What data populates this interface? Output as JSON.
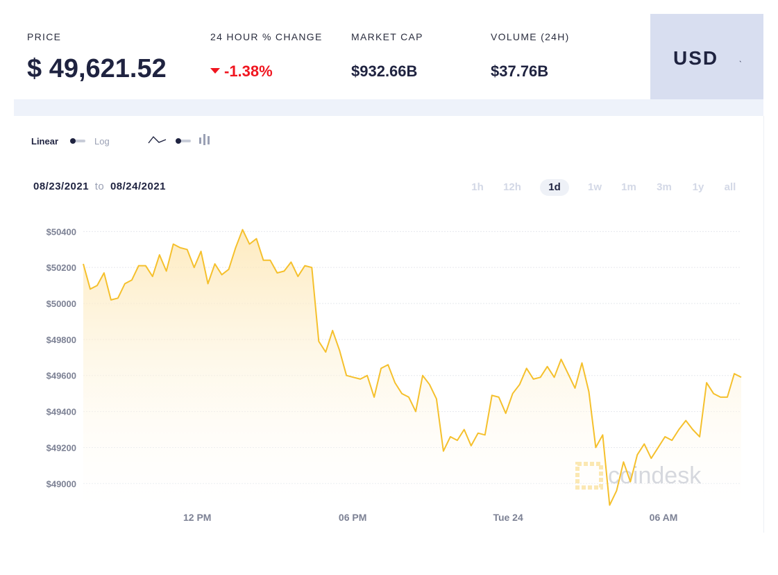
{
  "stats": {
    "price_label": "PRICE",
    "price_value": "$ 49,621.52",
    "change_label": "24 HOUR % CHANGE",
    "change_value": "-1.38%",
    "change_color": "#f0151f",
    "cap_label": "MARKET CAP",
    "cap_value": "$932.66B",
    "volume_label": "VOLUME (24H)",
    "volume_value": "$37.76B"
  },
  "currency": {
    "label": "USD",
    "icon": "chevron-down-icon"
  },
  "scale_toggle": {
    "linear_label": "Linear",
    "log_label": "Log"
  },
  "chart_style_toggle": {
    "line_icon": "line-chart-icon",
    "candle_icon": "candlestick-icon"
  },
  "date_range": {
    "from": "08/23/2021",
    "to_word": "to",
    "to": "08/24/2021"
  },
  "ranges": [
    "1h",
    "12h",
    "1d",
    "1w",
    "1m",
    "3m",
    "1y",
    "all"
  ],
  "active_range": "1d",
  "colors": {
    "line": "#f5c02c",
    "accent_bg": "#d8def0",
    "negative": "#f0151f",
    "navy": "#1f2340"
  },
  "watermark": "coindesk",
  "chart_data": {
    "type": "area",
    "title": "",
    "xlabel": "",
    "ylabel": "",
    "x_tick_labels": [
      "12 PM",
      "06 PM",
      "Tue 24",
      "06 AM"
    ],
    "x_tick_hours": [
      12,
      18,
      24,
      30
    ],
    "x_range_hours": [
      7.6,
      33.0
    ],
    "y_ticks": [
      "$50400",
      "$50200",
      "$50000",
      "$49800",
      "$49600",
      "$49400",
      "$49200",
      "$49000"
    ],
    "y_tick_values": [
      50400,
      50200,
      50000,
      49800,
      49600,
      49400,
      49200,
      49000
    ],
    "ylim": [
      48870,
      50490
    ],
    "grid": true,
    "series": [
      {
        "values": [
          50220,
          50080,
          50100,
          50170,
          50020,
          50030,
          50110,
          50130,
          50210,
          50210,
          50150,
          50270,
          50180,
          50330,
          50310,
          50300,
          50200,
          50290,
          50110,
          50220,
          50160,
          50190,
          50310,
          50410,
          50330,
          50360,
          50240,
          50240,
          50170,
          50180,
          50230,
          50150,
          50210,
          50200,
          49790,
          49730,
          49850,
          49740,
          49600,
          49590,
          49580,
          49600,
          49480,
          49640,
          49660,
          49560,
          49500,
          49480,
          49400,
          49600,
          49550,
          49470,
          49180,
          49260,
          49240,
          49300,
          49210,
          49280,
          49270,
          49490,
          49480,
          49390,
          49500,
          49550,
          49640,
          49580,
          49590,
          49650,
          49590,
          49690,
          49610,
          49530,
          49670,
          49510,
          49200,
          49270,
          48880,
          48960,
          49120,
          49010,
          49160,
          49220,
          49140,
          49200,
          49260,
          49240,
          49300,
          49350,
          49300,
          49260,
          49560,
          49500,
          49480,
          49480,
          49610,
          49590
        ]
      }
    ]
  }
}
